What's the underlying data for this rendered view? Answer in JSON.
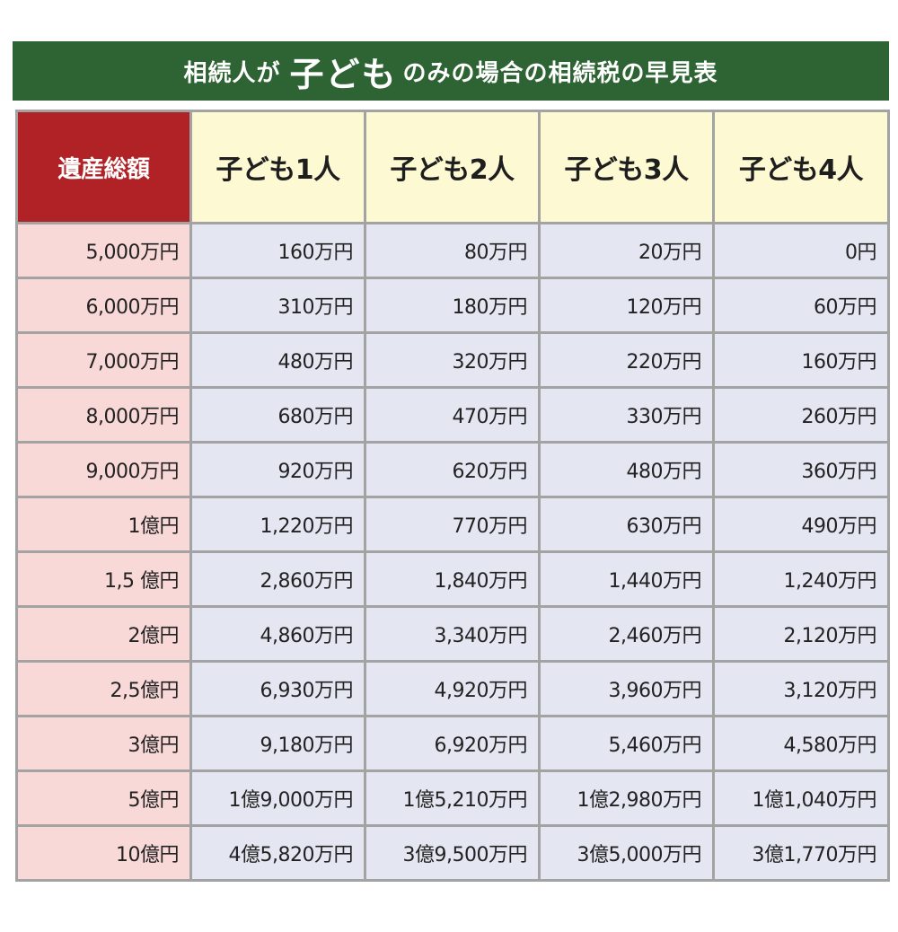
{
  "title": {
    "prefix": "相続人が",
    "emphasis": "子ども",
    "suffix": "のみの場合の相続税の早見表"
  },
  "columns": [
    "遺産総額",
    "子ども1人",
    "子ども2人",
    "子ども3人",
    "子ども4人"
  ],
  "rows": [
    {
      "estate": "5,000万円",
      "values": [
        "160万円",
        "80万円",
        "20万円",
        "0円"
      ]
    },
    {
      "estate": "6,000万円",
      "values": [
        "310万円",
        "180万円",
        "120万円",
        "60万円"
      ]
    },
    {
      "estate": "7,000万円",
      "values": [
        "480万円",
        "320万円",
        "220万円",
        "160万円"
      ]
    },
    {
      "estate": "8,000万円",
      "values": [
        "680万円",
        "470万円",
        "330万円",
        "260万円"
      ]
    },
    {
      "estate": "9,000万円",
      "values": [
        "920万円",
        "620万円",
        "480万円",
        "360万円"
      ]
    },
    {
      "estate": "1億円",
      "values": [
        "1,220万円",
        "770万円",
        "630万円",
        "490万円"
      ]
    },
    {
      "estate": "1,5 億円",
      "values": [
        "2,860万円",
        "1,840万円",
        "1,440万円",
        "1,240万円"
      ]
    },
    {
      "estate": "2億円",
      "values": [
        "4,860万円",
        "3,340万円",
        "2,460万円",
        "2,120万円"
      ]
    },
    {
      "estate": "2,5億円",
      "values": [
        "6,930万円",
        "4,920万円",
        "3,960万円",
        "3,120万円"
      ]
    },
    {
      "estate": "3億円",
      "values": [
        "9,180万円",
        "6,920万円",
        "5,460万円",
        "4,580万円"
      ]
    },
    {
      "estate": "5億円",
      "values": [
        "1億9,000万円",
        "1億5,210万円",
        "1億2,980万円",
        "1億1,040万円"
      ]
    },
    {
      "estate": "10億円",
      "values": [
        "4億5,820万円",
        "3億9,500万円",
        "3億5,000万円",
        "3億1,770万円"
      ]
    }
  ],
  "colors": {
    "title_bg": "#2e6433",
    "estate_header_bg": "#b12227",
    "child_header_bg": "#fdf9d2",
    "estate_cell_bg": "#f9d9d8",
    "value_cell_bg": "#e4e7f2",
    "grid_line": "#a3a3a3"
  }
}
